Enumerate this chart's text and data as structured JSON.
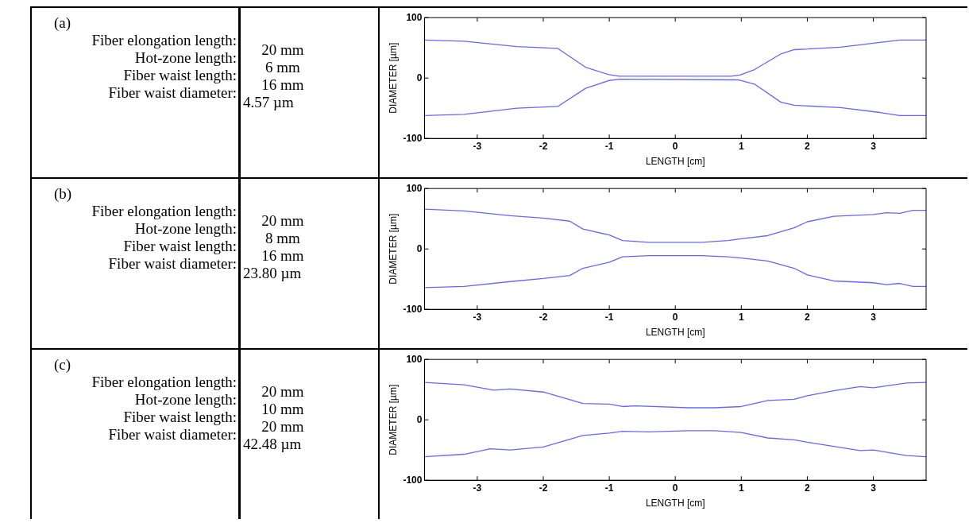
{
  "chart_data": [
    {
      "type": "other",
      "title": "(a)",
      "annotations": [
        "Fiber elongation length:",
        "20 mm",
        "Hot-zone length:",
        "6 mm",
        "Fiber waist length:",
        "16 mm",
        "Fiber waist diameter:",
        "4.57 µm"
      ]
    },
    {
      "type": "line",
      "xlabel": "LENGTH [cm]",
      "ylabel": "DIAMETER [µm]",
      "xlim": [
        -3.8,
        3.8
      ],
      "ylim": [
        -100,
        100
      ],
      "xticks": [
        -3,
        -2,
        -1,
        0,
        1,
        2,
        3
      ],
      "yticks": [
        -100,
        0,
        100
      ],
      "marker": "none",
      "series": [
        {
          "color": "#6666ff",
          "x": [
            -3.8,
            -3.2,
            -2.4,
            -1.78,
            -1.36,
            -1.02,
            -0.85,
            0.85,
            0.98,
            1.2,
            1.6,
            1.8,
            2.5,
            3.1,
            3.4,
            3.8
          ],
          "values": [
            63,
            61,
            52,
            49,
            18,
            6,
            3,
            3,
            5,
            14,
            40,
            47,
            51,
            59,
            63,
            63
          ]
        },
        {
          "color": "#6666ff",
          "x": [
            -3.8,
            -3.2,
            -2.4,
            -1.78,
            -1.36,
            -1.0,
            -0.85,
            0.95,
            1.2,
            1.6,
            1.8,
            2.5,
            3.1,
            3.4,
            3.8
          ],
          "values": [
            -62,
            -60,
            -50,
            -47,
            -17,
            -4,
            -2,
            -3,
            -10,
            -40,
            -45,
            -49,
            -57,
            -62,
            -62
          ]
        }
      ]
    },
    {
      "type": "other",
      "title": "(b)",
      "annotations": [
        "Fiber elongation length:",
        "20 mm",
        "Hot-zone length:",
        "8 mm",
        "Fiber waist length:",
        "16 mm",
        "Fiber waist diameter:",
        "23.80 µm"
      ]
    },
    {
      "type": "line",
      "xlabel": "LENGTH [cm]",
      "ylabel": "DIAMETER [µm]",
      "xlim": [
        -3.8,
        3.8
      ],
      "ylim": [
        -100,
        100
      ],
      "xticks": [
        -3,
        -2,
        -1,
        0,
        1,
        2,
        3
      ],
      "yticks": [
        -100,
        0,
        100
      ],
      "marker": "none",
      "series": [
        {
          "color": "#6666ff",
          "x": [
            -3.8,
            -3.2,
            -2.5,
            -2.0,
            -1.6,
            -1.4,
            -1.0,
            -0.8,
            -0.4,
            0.4,
            0.8,
            1.0,
            1.4,
            1.8,
            2.0,
            2.4,
            3.0,
            3.2,
            3.4,
            3.6,
            3.8
          ],
          "values": [
            66,
            63,
            55,
            51,
            46,
            33,
            23,
            14,
            11,
            11,
            14,
            17,
            22,
            35,
            45,
            54,
            57,
            60,
            59,
            64,
            64
          ]
        },
        {
          "color": "#6666ff",
          "x": [
            -3.8,
            -3.2,
            -2.5,
            -2.0,
            -1.6,
            -1.4,
            -1.0,
            -0.8,
            -0.4,
            0.4,
            0.8,
            1.0,
            1.4,
            1.8,
            2.0,
            2.4,
            3.0,
            3.2,
            3.4,
            3.6,
            3.8
          ],
          "values": [
            -64,
            -62,
            -54,
            -49,
            -44,
            -32,
            -22,
            -13,
            -11,
            -11,
            -13,
            -15,
            -20,
            -32,
            -43,
            -53,
            -56,
            -59,
            -57,
            -62,
            -62
          ]
        }
      ]
    },
    {
      "type": "other",
      "title": "(c)",
      "annotations": [
        "Fiber elongation length:",
        "20 mm",
        "Hot-zone length:",
        "10 mm",
        "Fiber waist length:",
        "20 mm",
        "Fiber waist diameter:",
        "42.48 µm"
      ]
    },
    {
      "type": "line",
      "xlabel": "LENGTH [cm]",
      "ylabel": "DIAMETER [µm]",
      "xlim": [
        -3.8,
        3.8
      ],
      "ylim": [
        -100,
        100
      ],
      "xticks": [
        -3,
        -2,
        -1,
        0,
        1,
        2,
        3
      ],
      "yticks": [
        -100,
        0,
        100
      ],
      "marker": "none",
      "series": [
        {
          "color": "#6666ff",
          "x": [
            -3.8,
            -3.2,
            -2.75,
            -2.5,
            -2.0,
            -1.4,
            -1.0,
            -0.8,
            -0.6,
            0.2,
            0.6,
            1.0,
            1.4,
            1.8,
            2.0,
            2.4,
            2.8,
            3.0,
            3.5,
            3.8
          ],
          "values": [
            62,
            58,
            49,
            51,
            46,
            27,
            26,
            22,
            23,
            20,
            20,
            22,
            32,
            34,
            40,
            48,
            55,
            53,
            61,
            62
          ]
        },
        {
          "color": "#6666ff",
          "x": [
            -3.8,
            -3.2,
            -2.8,
            -2.5,
            -2.0,
            -1.4,
            -1.0,
            -0.8,
            -0.4,
            0.2,
            0.6,
            1.0,
            1.4,
            1.8,
            2.0,
            2.4,
            2.8,
            3.0,
            3.5,
            3.8
          ],
          "values": [
            -61,
            -57,
            -48,
            -50,
            -45,
            -26,
            -22,
            -19,
            -20,
            -18,
            -18,
            -21,
            -30,
            -33,
            -37,
            -44,
            -51,
            -50,
            -59,
            -61
          ]
        }
      ]
    }
  ]
}
